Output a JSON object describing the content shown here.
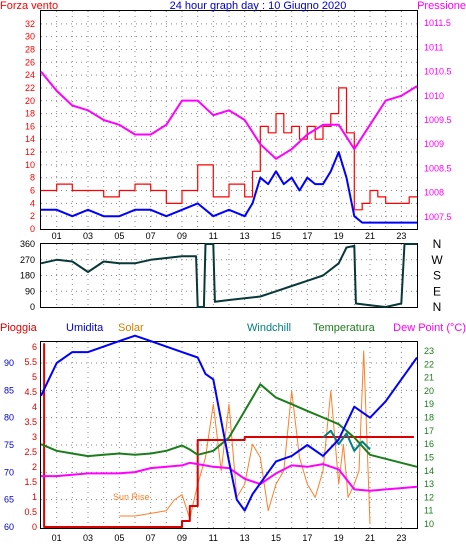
{
  "chart_data": [
    {
      "type": "line",
      "title": "24 hour graph day : 10 Giugno 2020",
      "left_axis_label": "Forza vento",
      "right_axis_label": "Pressione",
      "x_ticks": [
        "01",
        "03",
        "05",
        "07",
        "09",
        "11",
        "13",
        "15",
        "17",
        "19",
        "21",
        "23"
      ],
      "y_left_ticks": [
        0,
        2,
        4,
        6,
        8,
        10,
        12,
        14,
        16,
        18,
        20,
        22,
        24,
        26,
        28,
        30,
        32
      ],
      "y_right_ticks": [
        "1011.5",
        "1011",
        "1010.5",
        "1010",
        "1009.5",
        "1009",
        "1008.5",
        "1008",
        "1007.5"
      ],
      "xlim": [
        0,
        24
      ],
      "ylim_left": [
        0,
        34
      ],
      "ylim_right": [
        1007.25,
        1011.75
      ],
      "grid": true,
      "colors": {
        "gust": "#ff0000",
        "wind": "#0000ff",
        "pressure": "#ff00ff"
      },
      "series": [
        {
          "key": "gust",
          "x": [
            0,
            1,
            2,
            3,
            4,
            5,
            6,
            7,
            8,
            9,
            10,
            11,
            12,
            13,
            13.5,
            14,
            14.5,
            15,
            15.5,
            16,
            16.5,
            17,
            17.5,
            18,
            18.5,
            19,
            19.5,
            20,
            20.5,
            21,
            21.5,
            22,
            22.5,
            23,
            23.5,
            24
          ],
          "values": [
            6,
            7,
            6,
            6,
            5,
            6,
            7,
            6,
            4,
            6,
            10,
            5,
            7,
            5,
            9,
            16,
            15,
            18,
            15,
            16,
            14,
            16,
            14,
            16,
            18,
            22,
            15,
            3,
            4,
            6,
            5,
            4,
            4,
            4,
            5,
            5
          ]
        },
        {
          "key": "wind",
          "x": [
            0,
            1,
            2,
            3,
            4,
            5,
            6,
            7,
            8,
            9,
            10,
            11,
            12,
            13,
            13.5,
            14,
            14.5,
            15,
            15.5,
            16,
            16.5,
            17,
            17.5,
            18,
            18.5,
            19,
            19.5,
            20,
            20.5,
            21,
            21.5,
            22,
            22.5,
            23,
            23.5,
            24
          ],
          "values": [
            3,
            3,
            2,
            3,
            2,
            2,
            3,
            3,
            2,
            3,
            4,
            2,
            3,
            2,
            4,
            8,
            7,
            9,
            7,
            8,
            6,
            8,
            7,
            7,
            9,
            12,
            8,
            2,
            1,
            1,
            1,
            1,
            1,
            1,
            1,
            1
          ]
        },
        {
          "key": "pressure",
          "x": [
            0,
            1,
            2,
            3,
            4,
            5,
            6,
            7,
            8,
            9,
            10,
            11,
            12,
            13,
            14,
            15,
            16,
            17,
            18,
            19,
            20,
            21,
            22,
            23,
            24
          ],
          "values": [
            1010.5,
            1010.1,
            1009.8,
            1009.7,
            1009.5,
            1009.4,
            1009.2,
            1009.2,
            1009.4,
            1009.9,
            1009.9,
            1009.6,
            1009.7,
            1009.5,
            1009,
            1008.7,
            1008.9,
            1009.2,
            1009.4,
            1009.4,
            1008.9,
            1009.4,
            1009.9,
            1010,
            1010.2
          ]
        }
      ]
    },
    {
      "type": "line",
      "y_ticks": [
        0,
        90,
        180,
        270,
        360
      ],
      "right_labels": [
        "N",
        "W",
        "S",
        "E",
        "N"
      ],
      "ylim": [
        0,
        360
      ],
      "xlim": [
        0,
        24
      ],
      "grid": true,
      "series": [
        {
          "key": "direction",
          "x": [
            0,
            1,
            2,
            3,
            4,
            5,
            6,
            7,
            8,
            9,
            9.9,
            10.0,
            10.4,
            10.5,
            11,
            11.1,
            12,
            13,
            14,
            15,
            16,
            17,
            18,
            19,
            19.5,
            20.0,
            20.1,
            21,
            22,
            23,
            23.2,
            24
          ],
          "values": [
            250,
            270,
            260,
            200,
            260,
            250,
            250,
            270,
            280,
            290,
            290,
            0,
            0,
            360,
            360,
            30,
            40,
            50,
            60,
            90,
            120,
            150,
            180,
            250,
            340,
            350,
            20,
            10,
            0,
            20,
            360,
            360
          ]
        }
      ]
    },
    {
      "type": "line",
      "header": {
        "rain": "Pioggia",
        "humidity": "Umidita",
        "solar": "Solar",
        "windchill": "Windchill",
        "temperature": "Temperatura",
        "dewpoint": "Dew Point (°C)"
      },
      "annotation": "Sun Rise",
      "x_ticks": [
        "01",
        "03",
        "05",
        "07",
        "09",
        "11",
        "13",
        "15",
        "17",
        "19",
        "21",
        "23"
      ],
      "humidity_ticks": [
        60,
        65,
        70,
        75,
        80,
        85,
        90
      ],
      "rain_ticks": [
        0,
        0.5,
        1,
        1.5,
        2,
        2.5,
        3,
        3.5,
        4,
        4.5,
        5,
        5.5,
        6
      ],
      "temp_ticks": [
        10,
        11,
        12,
        13,
        14,
        15,
        16,
        17,
        18,
        19,
        20,
        21,
        22,
        23
      ],
      "xlim": [
        0,
        24
      ],
      "grid": true,
      "colors": {
        "rain": "#dd0000",
        "humidity": "#0000ff",
        "solar": "#ff7f27",
        "windchill": "#008080",
        "temperature": "#1b7d1b",
        "dewpoint": "#ff00ff"
      },
      "series": [
        {
          "key": "humidity",
          "unit_axis": "humidity",
          "x": [
            0,
            0.5,
            1,
            2,
            3,
            4,
            5,
            6,
            7,
            8,
            9,
            10,
            10.5,
            11,
            12,
            12.5,
            13,
            13.5,
            14,
            15,
            16,
            17,
            18,
            19,
            20,
            21,
            22,
            23,
            24
          ],
          "values": [
            84,
            87,
            90,
            92,
            92,
            93,
            94,
            95,
            94,
            93,
            92,
            91,
            88,
            87,
            72,
            65,
            63,
            66,
            68,
            72,
            73,
            75,
            73,
            76,
            82,
            80,
            83,
            87,
            91
          ]
        },
        {
          "key": "temperature",
          "unit_axis": "temperature",
          "x": [
            0,
            1,
            2,
            3,
            4,
            5,
            6,
            7,
            8,
            9,
            9.5,
            10,
            11,
            12,
            13,
            14,
            15,
            16,
            17,
            18,
            19,
            20,
            21,
            22,
            23,
            24
          ],
          "values": [
            16,
            15.5,
            15.3,
            15.1,
            15.2,
            15.3,
            15.2,
            15.3,
            15.5,
            15.9,
            15.6,
            15.2,
            15.5,
            16.5,
            18.5,
            20.5,
            19.5,
            19,
            18.5,
            18,
            17.5,
            16.5,
            15.2,
            14.9,
            14.6,
            14.3
          ]
        },
        {
          "key": "dewpoint",
          "unit_axis": "temperature",
          "x": [
            0,
            1,
            2,
            3,
            4,
            5,
            6,
            7,
            8,
            9,
            9.5,
            10,
            11,
            12,
            13,
            14,
            15,
            16,
            17,
            18,
            19,
            20,
            21,
            22,
            23,
            24
          ],
          "values": [
            13.6,
            13.6,
            13.7,
            13.8,
            13.8,
            13.8,
            13.9,
            14.2,
            14.3,
            14.4,
            14.6,
            14.5,
            14.3,
            14.2,
            13.4,
            13,
            13.8,
            14.4,
            14.3,
            14.5,
            14.1,
            12.6,
            12.5,
            12.6,
            12.7,
            12.8
          ]
        },
        {
          "key": "windchill",
          "unit_axis": "temperature",
          "x": [
            18,
            18.5,
            19,
            19.5,
            20,
            20.5,
            21
          ],
          "values": [
            16.5,
            17,
            16,
            16.8,
            15.5,
            16.2,
            15.6
          ]
        },
        {
          "key": "rain",
          "unit_axis": "rain",
          "x": [
            0.15,
            0.2,
            8.5,
            9,
            9.5,
            10,
            13,
            14,
            16,
            18,
            20,
            22,
            23.8
          ],
          "values": [
            6.1,
            0,
            0,
            0.2,
            0.7,
            2.9,
            3,
            3,
            3,
            3,
            3,
            3,
            3
          ]
        },
        {
          "key": "solar",
          "unit_axis": "temperature",
          "x": [
            5,
            6,
            7,
            8,
            8.5,
            9,
            9.5,
            10,
            10.5,
            11,
            11.5,
            12,
            12.5,
            13,
            13.5,
            14,
            14.5,
            15,
            15.5,
            16,
            16.5,
            17,
            17.5,
            18,
            18.5,
            19,
            19.3,
            19.6,
            20,
            20.3,
            20.6,
            21
          ],
          "values": [
            10.6,
            10.6,
            10.8,
            11,
            11.8,
            12.2,
            10.4,
            13,
            15,
            19,
            14,
            19,
            12,
            13,
            16,
            15,
            11,
            13,
            14,
            20,
            15,
            13,
            12,
            14,
            20,
            13,
            16,
            12,
            13,
            14,
            23,
            10
          ]
        }
      ]
    }
  ]
}
